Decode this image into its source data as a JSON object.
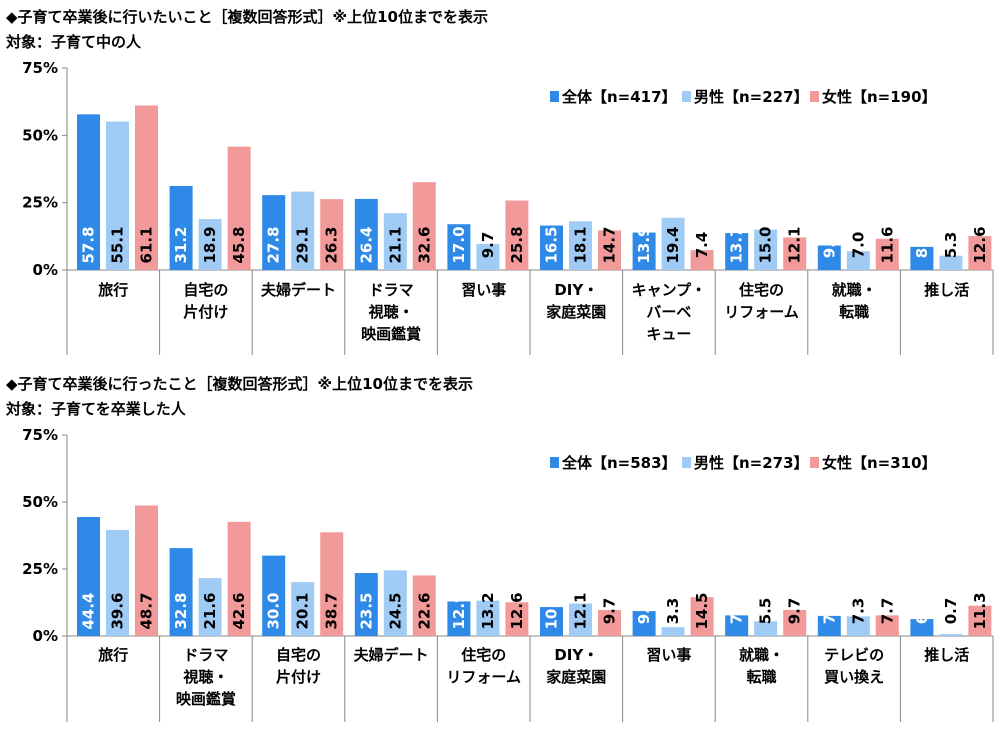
{
  "charts": [
    {
      "title": "◆子育て卒業後に行いたいこと［複数回答形式］※上位10位までを表示",
      "subtitle": "対象：子育て中の人"
    },
    {
      "title": "◆子育て卒業後に行ったこと［複数回答形式］※上位10位までを表示",
      "subtitle": "対象：子育てを卒業した人"
    }
  ],
  "chart_data": [
    {
      "type": "bar",
      "ylim": [
        0,
        75
      ],
      "yticks": [
        "0%",
        "25%",
        "50%",
        "75%"
      ],
      "grid": false,
      "legend_placement": "top-right",
      "categories": [
        [
          "旅行"
        ],
        [
          "自宅の",
          "片付け"
        ],
        [
          "夫婦デート"
        ],
        [
          "ドラマ",
          "視聴・",
          "映画鑑賞"
        ],
        [
          "習い事"
        ],
        [
          "DIY・",
          "家庭菜園"
        ],
        [
          "キャンプ・",
          "バーベ",
          "キュー"
        ],
        [
          "住宅の",
          "リフォーム"
        ],
        [
          "就職・",
          "転職"
        ],
        [
          "推し活"
        ]
      ],
      "series": [
        {
          "name": "全体【n=417】",
          "color": "#2e8ae6",
          "values": [
            57.8,
            31.2,
            27.8,
            26.4,
            17.0,
            16.5,
            13.9,
            13.7,
            9.1,
            8.6
          ],
          "labels": [
            "57.8",
            "31.2",
            "27.8",
            "26.4",
            "17.0",
            "16.5",
            "13.9",
            "13.7",
            "9.1",
            "8.6"
          ]
        },
        {
          "name": "男性【n=227】",
          "color": "#9fcbf4",
          "values": [
            55.1,
            18.9,
            29.1,
            21.1,
            9.7,
            18.1,
            19.4,
            15.0,
            7.0,
            5.3
          ],
          "labels": [
            "55.1",
            "18.9",
            "29.1",
            "21.1",
            "9.7",
            "18.1",
            "19.4",
            "15.0",
            "7.0",
            "5.3"
          ]
        },
        {
          "name": "女性【n=190】",
          "color": "#f29a9a",
          "values": [
            61.1,
            45.8,
            26.3,
            32.6,
            25.8,
            14.7,
            7.4,
            12.1,
            11.6,
            12.6
          ],
          "labels": [
            "61.1",
            "45.8",
            "26.3",
            "32.6",
            "25.8",
            "14.7",
            "7.4",
            "12.1",
            "11.6",
            "12.6"
          ]
        }
      ]
    },
    {
      "type": "bar",
      "ylim": [
        0,
        75
      ],
      "yticks": [
        "0%",
        "25%",
        "50%",
        "75%"
      ],
      "grid": false,
      "legend_placement": "top-right",
      "categories": [
        [
          "旅行"
        ],
        [
          "ドラマ",
          "視聴・",
          "映画鑑賞"
        ],
        [
          "自宅の",
          "片付け"
        ],
        [
          "夫婦デート"
        ],
        [
          "住宅の",
          "リフォーム"
        ],
        [
          "DIY・",
          "家庭菜園"
        ],
        [
          "習い事"
        ],
        [
          "就職・",
          "転職"
        ],
        [
          "テレビの",
          "買い換え"
        ],
        [
          "推し活"
        ]
      ],
      "series": [
        {
          "name": "全体【n=583】",
          "color": "#2e8ae6",
          "values": [
            44.4,
            32.8,
            30.0,
            23.5,
            12.9,
            10.8,
            9.3,
            7.7,
            7.5,
            6.3
          ],
          "labels": [
            "44.4",
            "32.8",
            "30.0",
            "23.5",
            "12.9",
            "10.8",
            "9.3",
            "7.7",
            "7.5",
            "6.3"
          ]
        },
        {
          "name": "男性【n=273】",
          "color": "#9fcbf4",
          "values": [
            39.6,
            21.6,
            20.1,
            24.5,
            13.2,
            12.1,
            3.3,
            5.5,
            7.3,
            0.7
          ],
          "labels": [
            "39.6",
            "21.6",
            "20.1",
            "24.5",
            "13.2",
            "12.1",
            "3.3",
            "5.5",
            "7.3",
            "0.7"
          ]
        },
        {
          "name": "女性【n=310】",
          "color": "#f29a9a",
          "values": [
            48.7,
            42.6,
            38.7,
            22.6,
            12.6,
            9.7,
            14.5,
            9.7,
            7.7,
            11.3
          ],
          "labels": [
            "48.7",
            "42.6",
            "38.7",
            "22.6",
            "12.6",
            "9.7",
            "14.5",
            "9.7",
            "7.7",
            "11.3"
          ]
        }
      ]
    }
  ]
}
